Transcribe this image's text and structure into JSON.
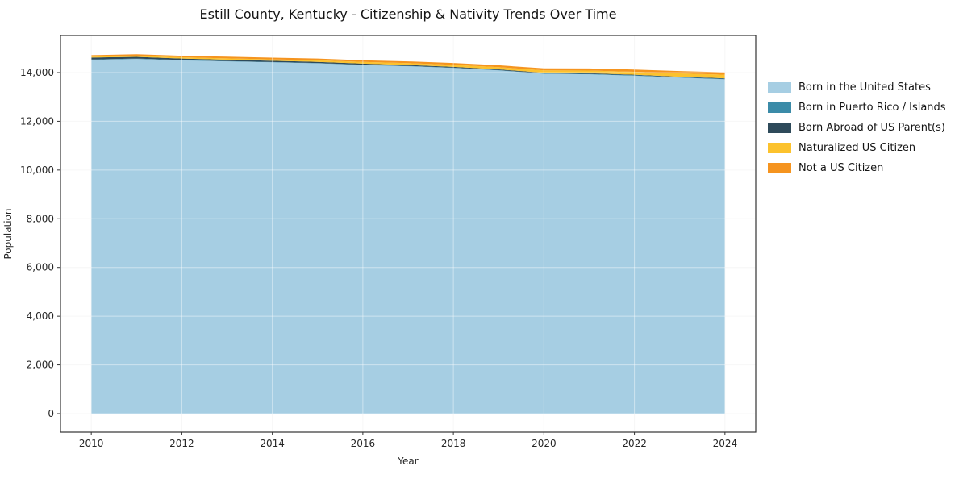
{
  "page": {
    "background": "#ffffff"
  },
  "chart_data": {
    "type": "area",
    "stacked": true,
    "title": "Estill County, Kentucky - Citizenship & Nativity Trends Over Time",
    "xlabel": "Year",
    "ylabel": "Population",
    "grid": true,
    "legend_position": "right-outside",
    "x": [
      2010,
      2011,
      2012,
      2013,
      2014,
      2015,
      2016,
      2017,
      2018,
      2019,
      2020,
      2021,
      2022,
      2023,
      2024
    ],
    "xticks": [
      2010,
      2012,
      2014,
      2016,
      2018,
      2020,
      2022,
      2024
    ],
    "yticks": [
      0,
      2000,
      4000,
      6000,
      8000,
      10000,
      12000,
      14000
    ],
    "xlim": [
      2009.32,
      2024.68
    ],
    "ylim": [
      -761,
      15522
    ],
    "series": [
      {
        "name": "Born in the United States",
        "color": "#a6cee3",
        "values": [
          14520,
          14560,
          14500,
          14460,
          14420,
          14380,
          14310,
          14260,
          14190,
          14090,
          13950,
          13930,
          13870,
          13790,
          13720
        ]
      },
      {
        "name": "Born in Puerto Rico / Islands",
        "color": "#3b8ba8",
        "values": [
          15,
          15,
          15,
          12,
          12,
          12,
          14,
          14,
          12,
          12,
          15,
          18,
          20,
          22,
          25
        ]
      },
      {
        "name": "Born Abroad of US Parent(s)",
        "color": "#2e4a5a",
        "values": [
          80,
          70,
          62,
          56,
          52,
          48,
          42,
          38,
          34,
          30,
          27,
          25,
          22,
          20,
          18
        ]
      },
      {
        "name": "Naturalized US Citizen",
        "color": "#fcc22d",
        "values": [
          40,
          45,
          50,
          55,
          60,
          65,
          70,
          75,
          82,
          90,
          100,
          110,
          120,
          135,
          150
        ]
      },
      {
        "name": "Not a US Citizen",
        "color": "#f5941f",
        "values": [
          60,
          62,
          65,
          68,
          68,
          70,
          70,
          72,
          75,
          78,
          80,
          85,
          90,
          95,
          100
        ]
      }
    ]
  }
}
